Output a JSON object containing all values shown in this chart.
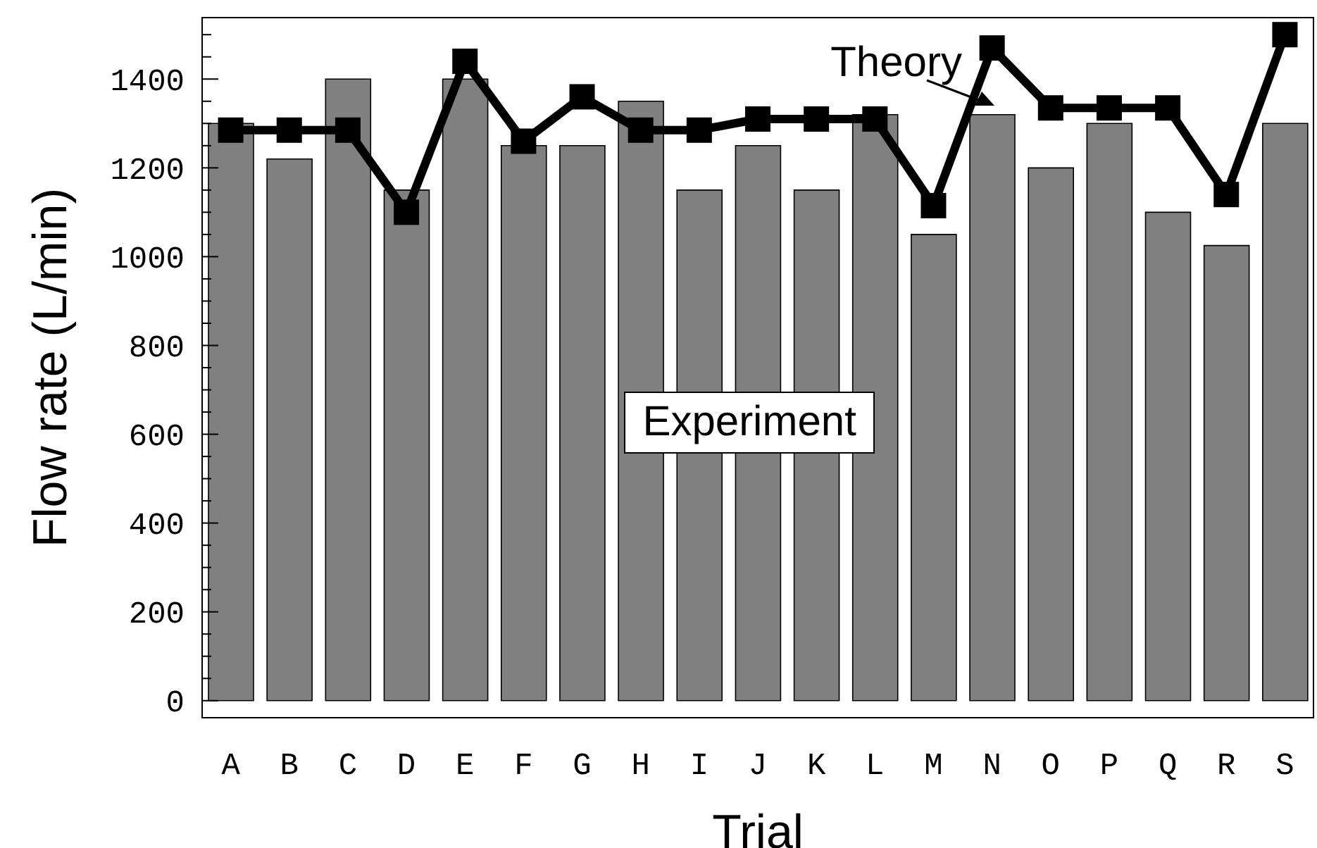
{
  "chart_data": {
    "type": "bar",
    "xlabel": "Trial",
    "ylabel": "Flow rate (L/min)",
    "categories": [
      "A",
      "B",
      "C",
      "D",
      "E",
      "F",
      "G",
      "H",
      "I",
      "J",
      "K",
      "L",
      "M",
      "N",
      "O",
      "P",
      "Q",
      "R",
      "S"
    ],
    "series": [
      {
        "name": "Experiment",
        "color": "#808080",
        "values": [
          1300,
          1220,
          1400,
          1150,
          1400,
          1250,
          1250,
          1350,
          1150,
          1250,
          1150,
          1320,
          1050,
          1320,
          1200,
          1300,
          1100,
          1025,
          1300
        ]
      },
      {
        "name": "Theory",
        "type": "line",
        "color": "#000000",
        "values": [
          1285,
          1285,
          1285,
          1100,
          1440,
          1260,
          1360,
          1285,
          1285,
          1310,
          1310,
          1310,
          1115,
          1470,
          1335,
          1335,
          1335,
          1140,
          1500
        ]
      }
    ],
    "ylim": [
      -40,
      1540
    ],
    "yticks": [
      0,
      {
        "value": 50,
        "label": null
      },
      {
        "value": 100,
        "label": null
      },
      {
        "value": 150,
        "label": null
      },
      200,
      {
        "value": 250,
        "label": null
      },
      {
        "value": 300,
        "label": null
      },
      {
        "value": 350,
        "label": null
      },
      400,
      {
        "value": 450,
        "label": null
      },
      {
        "value": 500,
        "label": null
      },
      {
        "value": 550,
        "label": null
      },
      600,
      {
        "value": 650,
        "label": null
      },
      {
        "value": 700,
        "label": null
      },
      {
        "value": 750,
        "label": null
      },
      800,
      {
        "value": 850,
        "label": null
      },
      {
        "value": 900,
        "label": null
      },
      {
        "value": 950,
        "label": null
      },
      1000,
      {
        "value": 1050,
        "label": null
      },
      {
        "value": 1100,
        "label": null
      },
      {
        "value": 1150,
        "label": null
      },
      1200,
      {
        "value": 1250,
        "label": null
      },
      {
        "value": 1300,
        "label": null
      },
      {
        "value": 1350,
        "label": null
      },
      1400,
      {
        "value": 1450,
        "label": null
      },
      {
        "value": 1500,
        "label": null
      }
    ],
    "marker": "square"
  }
}
